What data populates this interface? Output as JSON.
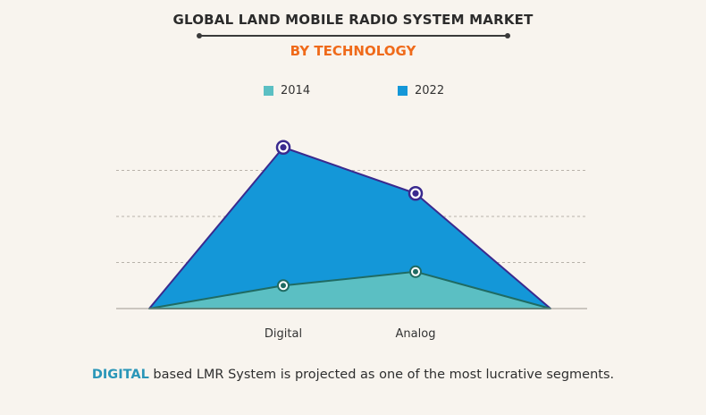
{
  "title": "GLOBAL LAND MOBILE RADIO SYSTEM MARKET",
  "subtitle": "BY TECHNOLOGY",
  "caption": {
    "highlight": "DIGITAL",
    "rest": " based LMR System is projected as one of the most lucrative segments."
  },
  "chart_data": {
    "type": "area",
    "categories": [
      "",
      "Digital",
      "Analog",
      ""
    ],
    "series": [
      {
        "name": "2022",
        "values": [
          0,
          3.5,
          2.5,
          0
        ],
        "color": "#1497d8",
        "line": "#3a2a8e"
      },
      {
        "name": "2014",
        "values": [
          0,
          0.5,
          0.8,
          0
        ],
        "color": "#5bbfc3",
        "line": "#1f6b63"
      }
    ],
    "ylim": [
      0,
      4
    ],
    "grid": true,
    "legend": "top"
  }
}
